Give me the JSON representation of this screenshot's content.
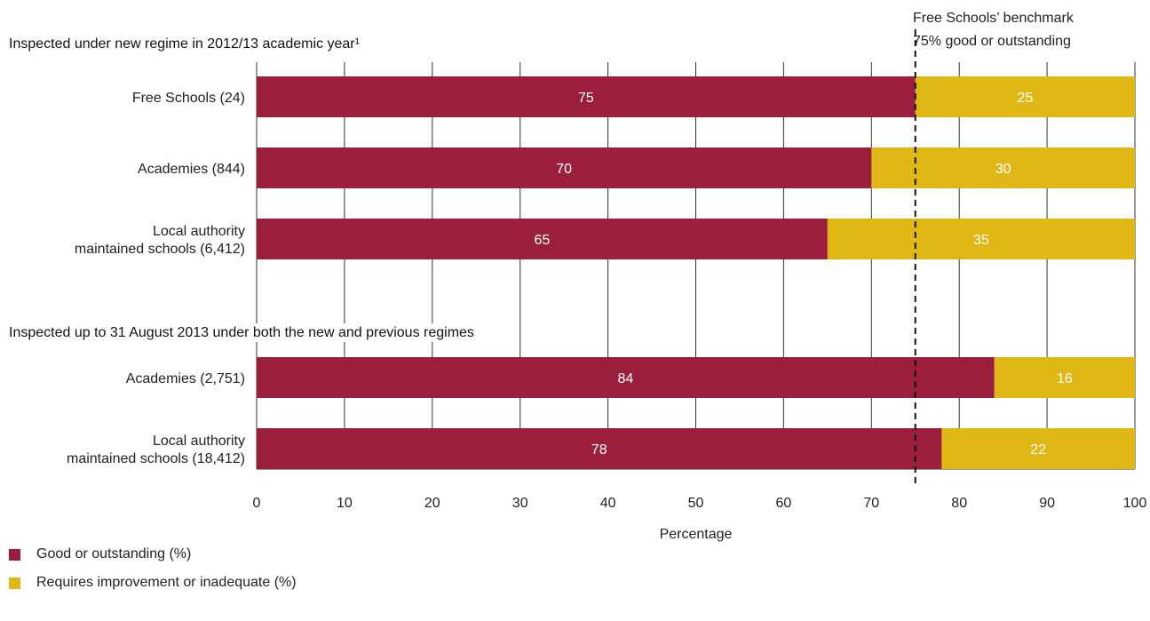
{
  "colors": {
    "good": "#9b1f3c",
    "requires": "#dfb815"
  },
  "benchmark": {
    "value": 75,
    "line1": "Free Schools’ benchmark",
    "line2": "75% good or outstanding"
  },
  "legend": [
    {
      "label": "Good or outstanding (%)",
      "color": "#9b1f3c"
    },
    {
      "label": "Requires improvement or inadequate (%)",
      "color": "#dfb815"
    }
  ],
  "chart_data": {
    "type": "bar",
    "orientation": "horizontal",
    "stacked": true,
    "xlabel": "Percentage",
    "xlim": [
      0,
      100
    ],
    "xticks": [
      0,
      10,
      20,
      30,
      40,
      50,
      60,
      70,
      80,
      90,
      100
    ],
    "grid": "vertical",
    "legend_position": "bottom-left",
    "series_names": [
      "Good or outstanding (%)",
      "Requires improvement or inadequate (%)"
    ],
    "groups": [
      {
        "title": "Inspected under new regime in 2012/13 academic year¹",
        "bars": [
          {
            "label": [
              "Free Schools (24)"
            ],
            "values": [
              75,
              25
            ]
          },
          {
            "label": [
              "Academies (844)"
            ],
            "values": [
              70,
              30
            ]
          },
          {
            "label": [
              "Local authority",
              "maintained schools (6,412)"
            ],
            "values": [
              65,
              35
            ]
          }
        ]
      },
      {
        "title": "Inspected up to 31 August 2013 under both the new and previous regimes",
        "bars": [
          {
            "label": [
              "Academies (2,751)"
            ],
            "values": [
              84,
              16
            ]
          },
          {
            "label": [
              "Local authority",
              "maintained schools (18,412)"
            ],
            "values": [
              78,
              22
            ]
          }
        ]
      }
    ]
  }
}
